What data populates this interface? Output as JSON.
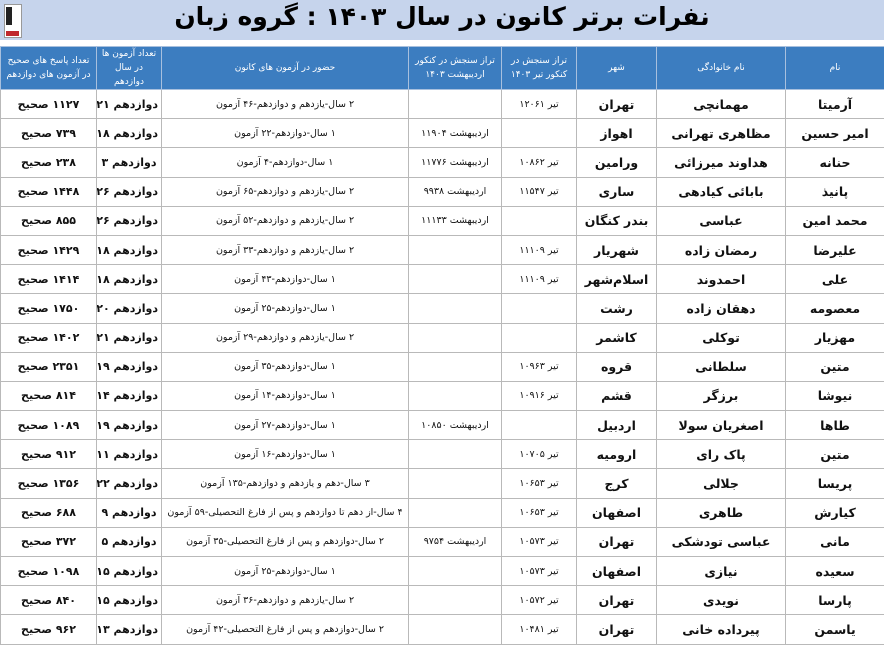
{
  "title": "نفرات برتر کانون در سال ۱۴۰۳ : گروه زبان",
  "logo_label": "کانون",
  "colors": {
    "title_band": "#c6d4ec",
    "header_bg": "#3c7dc0",
    "header_text": "#ffffff"
  },
  "columns": [
    "نام",
    "نام خانوادگی",
    "شهر",
    "تراز سنجش در کنکور تیر ۱۴۰۳",
    "تراز سنجش در کنکور اردیبهشت ۱۴۰۳",
    "حضور در آزمون های کانون",
    "تعداد آزمون ها در سال دوازدهم",
    "تعداد پاسخ های صحیح در آزمون های دوازدهم"
  ],
  "rows": [
    [
      "آرمیتا",
      "مهمانچی",
      "تهران",
      "تیر ۱۲۰۶۱",
      "",
      "۲ سال-یازدهم و دوازدهم-۴۶ آزمون",
      "دوازدهم ۲۱",
      "۱۱۲۷ صحیح"
    ],
    [
      "امیر حسین",
      "مظاهری تهرانی",
      "اهواز",
      "",
      "اردیبهشت ۱۱۹۰۴",
      "۱ سال-دوازدهم-۲۲ آزمون",
      "دوازدهم ۱۸",
      "۷۳۹ صحیح"
    ],
    [
      "حنانه",
      "هداوند میرزائی",
      "ورامین",
      "تیر ۱۰۸۶۲",
      "اردیبهشت ۱۱۷۷۶",
      "۱ سال-دوازدهم-۴ آزمون",
      "دوازدهم ۳",
      "۲۳۸ صحیح"
    ],
    [
      "پانیذ",
      "بابائی کیادهی",
      "ساری",
      "تیر ۱۱۵۴۷",
      "اردیبهشت ۹۹۳۸",
      "۲ سال-یازدهم و دوازدهم-۶۵ آزمون",
      "دوازدهم ۲۶",
      "۱۴۴۸ صحیح"
    ],
    [
      "محمد امین",
      "عباسی",
      "بندر کنگان",
      "",
      "اردیبهشت ۱۱۱۳۳",
      "۲ سال-یازدهم و دوازدهم-۵۲ آزمون",
      "دوازدهم ۲۶",
      "۸۵۵ صحیح"
    ],
    [
      "علیرضا",
      "رمضان زاده",
      "شهریار",
      "تیر ۱۱۱۰۹",
      "",
      "۲ سال-یازدهم و دوازدهم-۳۳ آزمون",
      "دوازدهم ۱۸",
      "۱۴۲۹ صحیح"
    ],
    [
      "علی",
      "احمدوند",
      "اسلام‌شهر",
      "تیر ۱۱۱۰۹",
      "",
      "۱ سال-دوازدهم-۴۳ آزمون",
      "دوازدهم ۱۸",
      "۱۴۱۴ صحیح"
    ],
    [
      "معصومه",
      "دهقان زاده",
      "رشت",
      "",
      "",
      "۱ سال-دوازدهم-۲۵ آزمون",
      "دوازدهم ۲۰",
      "۱۷۵۰ صحیح"
    ],
    [
      "مهزیار",
      "توکلی",
      "کاشمر",
      "",
      "",
      "۲ سال-یازدهم و دوازدهم-۲۹ آزمون",
      "دوازدهم ۲۱",
      "۱۴۰۲ صحیح"
    ],
    [
      "متین",
      "سلطانی",
      "قروه",
      "تیر ۱۰۹۶۳",
      "",
      "۱ سال-دوازدهم-۳۵ آزمون",
      "دوازدهم ۱۹",
      "۲۳۵۱ صحیح"
    ],
    [
      "نیوشا",
      "برزگر",
      "قشم",
      "تیر ۱۰۹۱۶",
      "",
      "۱ سال-دوازدهم-۱۴ آزمون",
      "دوازدهم ۱۴",
      "۸۱۴ صحیح"
    ],
    [
      "طاها",
      "اصغریان سولا",
      "اردبیل",
      "",
      "اردیبهشت ۱۰۸۵۰",
      "۱ سال-دوازدهم-۲۷ آزمون",
      "دوازدهم ۱۹",
      "۱۰۸۹ صحیح"
    ],
    [
      "متین",
      "پاک رای",
      "ارومیه",
      "تیر ۱۰۷۰۵",
      "",
      "۱ سال-دوازدهم-۱۶ آزمون",
      "دوازدهم ۱۱",
      "۹۱۲ صحیح"
    ],
    [
      "پریسا",
      "جلالی",
      "کرج",
      "تیر ۱۰۶۵۳",
      "",
      "۳ سال-دهم و یازدهم و دوازدهم-۱۳۵ آزمون",
      "دوازدهم ۲۲",
      "۱۳۵۶ صحیح"
    ],
    [
      "کیارش",
      "طاهری",
      "اصفهان",
      "تیر ۱۰۶۵۳",
      "",
      "۴ سال-از دهم تا دوازدهم و پس از فارغ التحصیلی-۵۹ آزمون",
      "دوازدهم ۹",
      "۶۸۸ صحیح"
    ],
    [
      "مانی",
      "عباسی تودشکی",
      "تهران",
      "تیر ۱۰۵۷۳",
      "اردیبهشت ۹۷۵۴",
      "۲ سال-دوازدهم و پس از فارغ التحصیلی-۳۵ آزمون",
      "دوازدهم ۵",
      "۳۷۲ صحیح"
    ],
    [
      "سعیده",
      "نیازی",
      "اصفهان",
      "تیر ۱۰۵۷۳",
      "",
      "۱ سال-دوازدهم-۲۵ آزمون",
      "دوازدهم ۱۵",
      "۱۰۹۸ صحیح"
    ],
    [
      "پارسا",
      "نویدی",
      "تهران",
      "تیر ۱۰۵۷۲",
      "",
      "۲ سال-یازدهم و دوازدهم-۳۶ آزمون",
      "دوازدهم ۱۵",
      "۸۴۰ صحیح"
    ],
    [
      "یاسمن",
      "پیرداده خانی",
      "تهران",
      "تیر ۱۰۴۸۱",
      "",
      "۲ سال-دوازدهم و پس از فارغ التحصیلی-۴۲ آزمون",
      "دوازدهم ۱۳",
      "۹۶۲ صحیح"
    ]
  ]
}
